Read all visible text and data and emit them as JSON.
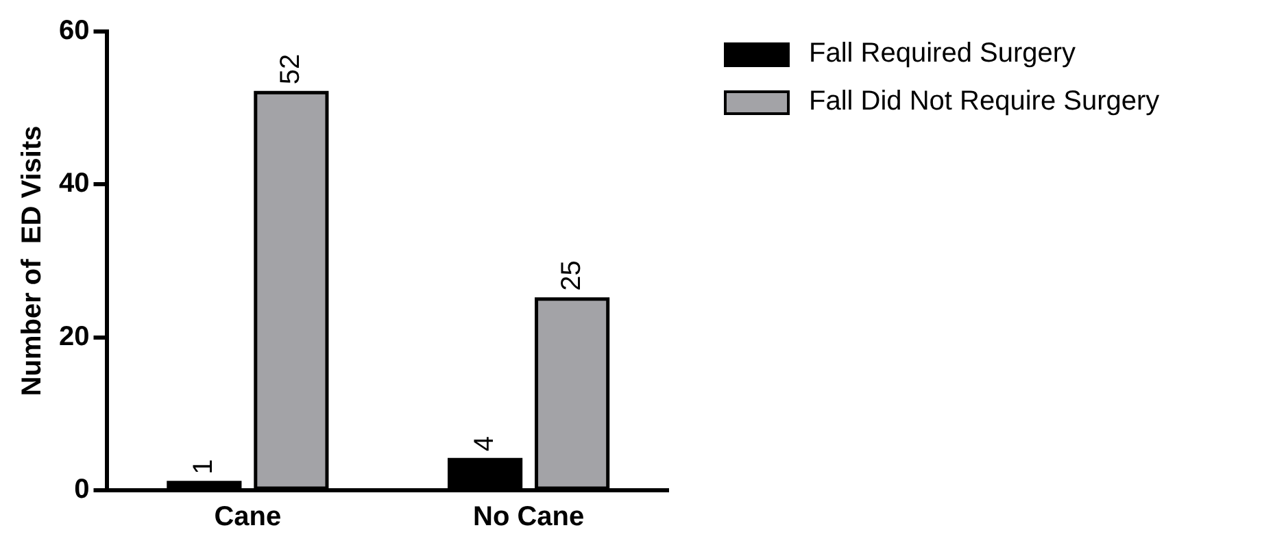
{
  "chart_data": {
    "type": "bar",
    "ylabel": "Number of  ED Visits",
    "categories": [
      "Cane",
      "No Cane"
    ],
    "series": [
      {
        "name": "Fall Required Surgery",
        "color": "#000000",
        "values": [
          1,
          4
        ]
      },
      {
        "name": "Fall Did Not Require Surgery",
        "color": "#a3a3a7",
        "values": [
          52,
          25
        ]
      }
    ],
    "ylim": [
      0,
      60
    ],
    "yticks": [
      0,
      20,
      40,
      60
    ],
    "data_labels": true,
    "grid": false,
    "legend": "top right"
  }
}
